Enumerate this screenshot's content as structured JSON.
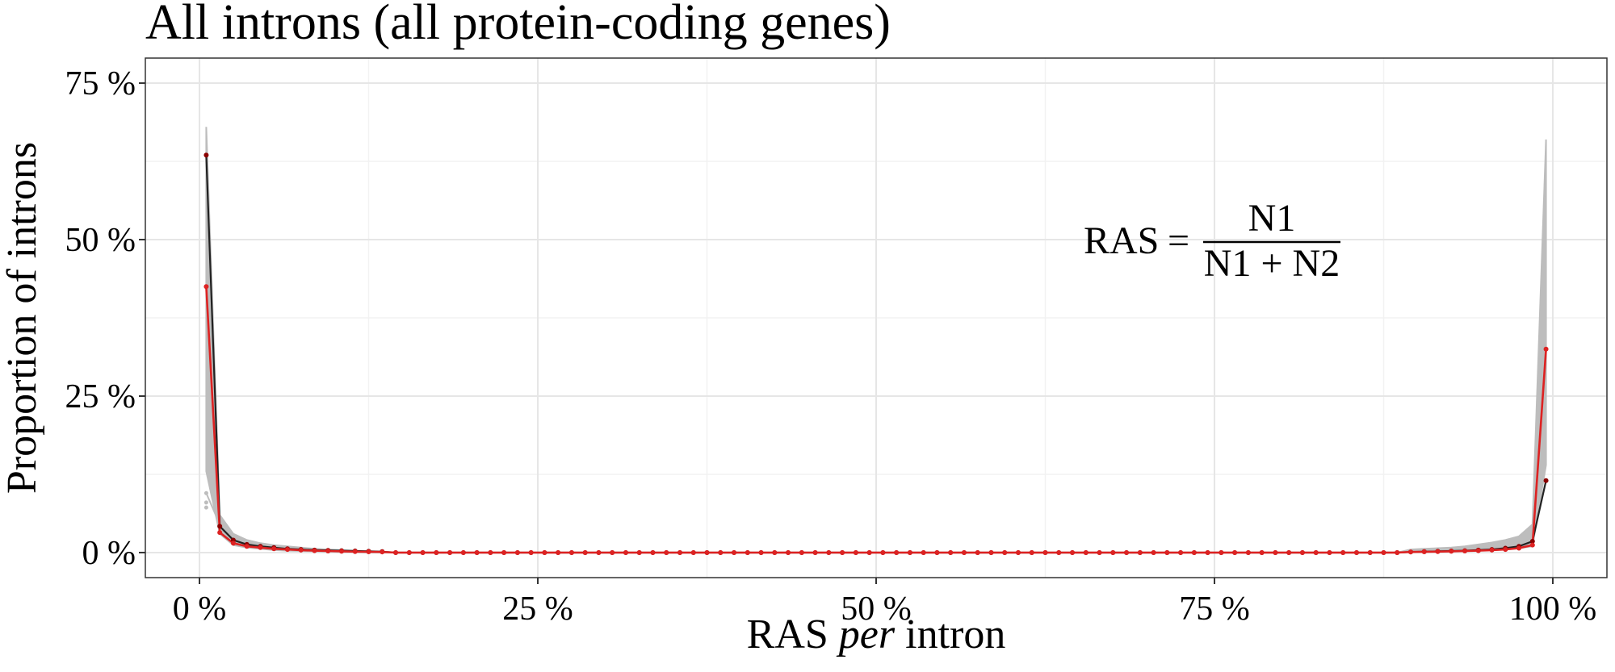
{
  "chart_data": {
    "type": "line",
    "title": "All introns (all protein-coding genes)",
    "xlabel": {
      "main": "RAS",
      "italic": "per",
      "rest": "intron"
    },
    "ylabel": "Proportion of introns",
    "xlim": [
      -4,
      104
    ],
    "ylim": [
      -4,
      79
    ],
    "x_ticks": [
      0,
      25,
      50,
      75,
      100
    ],
    "x_tick_labels": [
      "0 %",
      "25 %",
      "50 %",
      "75 %",
      "100 %"
    ],
    "y_ticks": [
      0,
      25,
      50,
      75
    ],
    "y_tick_labels": [
      "0 %",
      "25 %",
      "50 %",
      "75 %"
    ],
    "grid": true,
    "annotation": {
      "lhs": "RAS",
      "eq": "=",
      "numerator": "N1",
      "denominator_a": "N1",
      "plus": "+",
      "denominator_b": "N2"
    },
    "x_start": 0.5,
    "x_step": 1,
    "n_points": 100,
    "series": [
      {
        "color": "#8b0000",
        "line_color": "#222222",
        "left": [
          63.5,
          4.2,
          2.0,
          1.3,
          1.0,
          0.8,
          0.6,
          0.5,
          0.4,
          0.35,
          0.3,
          0.25,
          0.2,
          0.15
        ],
        "right": [
          0.1,
          0.15,
          0.2,
          0.25,
          0.3,
          0.4,
          0.5,
          0.7,
          1.0,
          1.8,
          11.5
        ]
      },
      {
        "color": "#dd2222",
        "line_color": "#dd2222",
        "left": [
          42.5,
          3.2,
          1.5,
          1.0,
          0.8,
          0.6,
          0.5,
          0.4,
          0.3,
          0.25,
          0.2,
          0.15,
          0.12,
          0.1
        ],
        "right": [
          0.1,
          0.12,
          0.15,
          0.2,
          0.25,
          0.3,
          0.4,
          0.5,
          0.7,
          1.2,
          32.5
        ]
      }
    ],
    "background_band": {
      "color": "#bdbdbd",
      "left_low": [
        13.0,
        3.0,
        1.2,
        0.8,
        0.6,
        0.4,
        0.3,
        0.25,
        0.2,
        0.15,
        0.1,
        0.1
      ],
      "left_high": [
        68.0,
        6.0,
        3.0,
        2.0,
        1.5,
        1.2,
        1.0,
        0.8,
        0.6,
        0.5,
        0.4,
        0.3
      ],
      "right_low": [
        0.1,
        0.1,
        0.15,
        0.2,
        0.25,
        0.3,
        0.4,
        0.5,
        0.7,
        1.0,
        14.0
      ],
      "right_high": [
        0.5,
        0.6,
        0.7,
        0.8,
        1.0,
        1.3,
        1.6,
        2.0,
        2.6,
        4.5,
        66.0
      ]
    },
    "outliers": [
      {
        "x": 0.5,
        "y": 9.5
      },
      {
        "x": 0.5,
        "y": 8.0
      },
      {
        "x": 0.5,
        "y": 7.2
      },
      {
        "x": 1.5,
        "y": 4.5
      }
    ]
  }
}
